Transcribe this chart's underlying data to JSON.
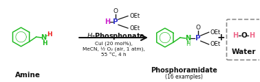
{
  "background_color": "#ffffff",
  "figure_width": 3.78,
  "figure_height": 1.2,
  "dpi": 100,
  "amine_label": "Amine",
  "hphosphonate_label": "$\\mathit{H}$-Phosphonate",
  "phosphoramidate_label": "Phosphoramidate",
  "phosphoramidate_sublabel": "(16 examples)",
  "water_label": "Water",
  "arrow_conditions_line1": "CuI (20 mol%),",
  "arrow_conditions_line2": "MeCN, ½ O₂ (air, 1 atm),",
  "arrow_conditions_line3": "55 °C, 4 h",
  "color_green": "#22bb22",
  "color_blue": "#3333cc",
  "color_magenta": "#cc22cc",
  "color_red": "#ee2222",
  "color_pink": "#ee6688",
  "color_black": "#111111",
  "color_gray": "#888888",
  "font_size_tiny": 4.8,
  "font_size_small": 5.5,
  "font_size_medium": 6.5,
  "font_size_label": 7.0,
  "font_size_large": 8.0
}
